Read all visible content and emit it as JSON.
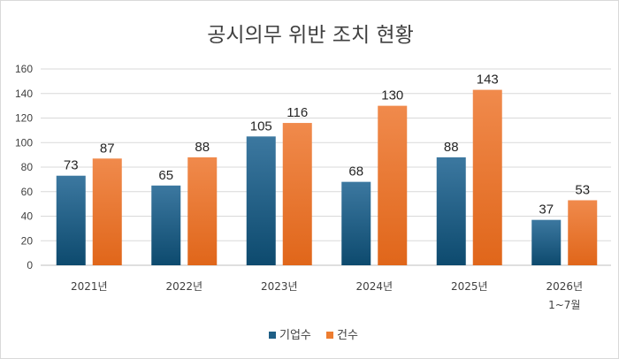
{
  "chart_data": {
    "type": "bar",
    "title": "공시의무 위반 조치 현황",
    "categories": [
      "2021년",
      "2022년",
      "2023년",
      "2024년",
      "2025년",
      "2026년\n1~7월"
    ],
    "series": [
      {
        "name": "기업수",
        "values": [
          73,
          65,
          105,
          68,
          88,
          37
        ],
        "color": "#1f5f86"
      },
      {
        "name": "건수",
        "values": [
          87,
          88,
          116,
          130,
          143,
          53
        ],
        "color": "#ed7d31"
      }
    ],
    "ylim": [
      0,
      160
    ],
    "yticks": [
      0,
      20,
      40,
      60,
      80,
      100,
      120,
      140,
      160
    ],
    "grid": true,
    "legend_position": "bottom"
  }
}
